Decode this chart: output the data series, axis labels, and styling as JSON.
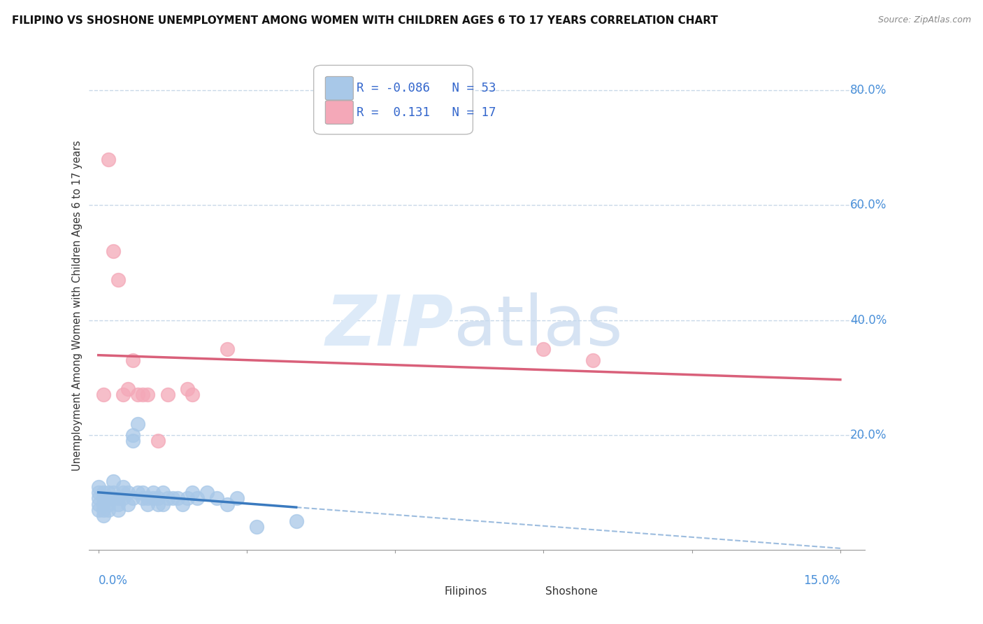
{
  "title": "FILIPINO VS SHOSHONE UNEMPLOYMENT AMONG WOMEN WITH CHILDREN AGES 6 TO 17 YEARS CORRELATION CHART",
  "source": "Source: ZipAtlas.com",
  "ylabel": "Unemployment Among Women with Children Ages 6 to 17 years",
  "xlim": [
    0.0,
    0.15
  ],
  "ylim": [
    0.0,
    0.85
  ],
  "filipino_R": -0.086,
  "filipino_N": 53,
  "shoshone_R": 0.131,
  "shoshone_N": 17,
  "filipino_color": "#a8c8e8",
  "shoshone_color": "#f4a8b8",
  "filipino_line_color": "#3a7abf",
  "shoshone_line_color": "#d9607a",
  "title_fontsize": 11,
  "source_fontsize": 9,
  "background_color": "#ffffff",
  "grid_color": "#c8d8e8",
  "right_label_color": "#4a90d9",
  "filipino_x": [
    0.0,
    0.0,
    0.0,
    0.0,
    0.0,
    0.001,
    0.001,
    0.001,
    0.001,
    0.001,
    0.002,
    0.002,
    0.002,
    0.002,
    0.003,
    0.003,
    0.003,
    0.004,
    0.004,
    0.004,
    0.005,
    0.005,
    0.005,
    0.006,
    0.006,
    0.007,
    0.007,
    0.007,
    0.008,
    0.008,
    0.009,
    0.009,
    0.01,
    0.01,
    0.011,
    0.011,
    0.012,
    0.012,
    0.013,
    0.013,
    0.014,
    0.015,
    0.016,
    0.017,
    0.018,
    0.019,
    0.02,
    0.022,
    0.024,
    0.026,
    0.028,
    0.032,
    0.04
  ],
  "filipino_y": [
    0.1,
    0.09,
    0.08,
    0.07,
    0.11,
    0.09,
    0.1,
    0.08,
    0.07,
    0.06,
    0.09,
    0.1,
    0.08,
    0.07,
    0.09,
    0.1,
    0.12,
    0.08,
    0.09,
    0.07,
    0.1,
    0.09,
    0.11,
    0.08,
    0.1,
    0.2,
    0.19,
    0.09,
    0.1,
    0.22,
    0.09,
    0.1,
    0.09,
    0.08,
    0.09,
    0.1,
    0.08,
    0.09,
    0.1,
    0.08,
    0.09,
    0.09,
    0.09,
    0.08,
    0.09,
    0.1,
    0.09,
    0.1,
    0.09,
    0.08,
    0.09,
    0.04,
    0.05
  ],
  "shoshone_x": [
    0.001,
    0.002,
    0.003,
    0.004,
    0.005,
    0.006,
    0.007,
    0.008,
    0.009,
    0.01,
    0.012,
    0.014,
    0.018,
    0.019,
    0.026,
    0.09,
    0.1
  ],
  "shoshone_y": [
    0.27,
    0.68,
    0.52,
    0.47,
    0.27,
    0.28,
    0.33,
    0.27,
    0.27,
    0.27,
    0.19,
    0.27,
    0.28,
    0.27,
    0.35,
    0.35,
    0.33
  ],
  "ytick_vals": [
    0.0,
    0.2,
    0.4,
    0.6,
    0.8
  ],
  "ytick_labels": [
    "",
    "20.0%",
    "40.0%",
    "60.0%",
    "80.0%"
  ],
  "xtick_vals": [
    0.0,
    0.15
  ],
  "xtick_labels": [
    "0.0%",
    "15.0%"
  ]
}
